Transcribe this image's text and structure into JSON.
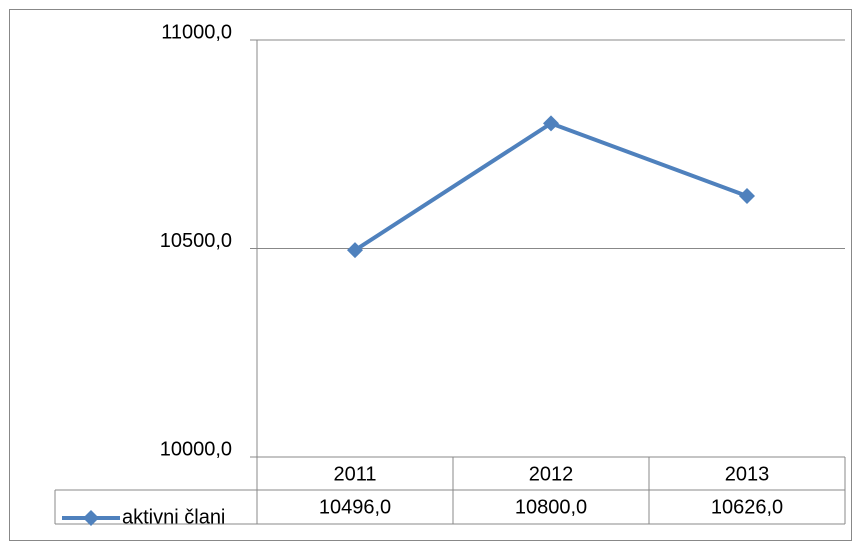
{
  "chart_data": {
    "type": "line",
    "categories": [
      "2011",
      "2012",
      "2013"
    ],
    "series": [
      {
        "name": "aktivni člani",
        "color": "#4f81bd",
        "values": [
          10496,
          10800,
          10626
        ],
        "value_labels": [
          "10496,0",
          "10800,0",
          "10626,0"
        ]
      }
    ],
    "ylim": [
      10000,
      11000
    ],
    "yticks": [
      {
        "value": 10000,
        "label": "10000,0"
      },
      {
        "value": 10500,
        "label": "10500,0"
      },
      {
        "value": 11000,
        "label": "11000,0"
      }
    ],
    "grid": true
  }
}
